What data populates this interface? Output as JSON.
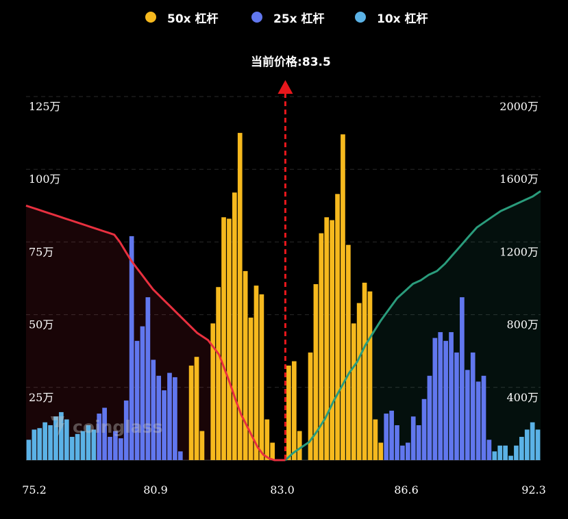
{
  "legend": [
    {
      "label": "50x 杠杆",
      "color": "#F6B91E"
    },
    {
      "label": "25x 杠杆",
      "color": "#6177EE"
    },
    {
      "label": "10x 杠杆",
      "color": "#5BB2E6"
    }
  ],
  "price_label": "当前价格:83.5",
  "watermark": "coinglass",
  "chart_data": {
    "type": "bar",
    "current_price": 83.5,
    "current_price_marker_color": "#E8171C",
    "x_tick_labels": [
      "75.2",
      "80.9",
      "83.0",
      "86.6",
      "92.3"
    ],
    "left_axis": {
      "tick_labels": [
        "25万",
        "50万",
        "75万",
        "100万",
        "125万"
      ],
      "ylim": [
        0,
        1250000
      ]
    },
    "right_axis": {
      "tick_labels": [
        "400万",
        "800万",
        "1200万",
        "1600万",
        "2000万"
      ],
      "ylim": [
        0,
        20000000
      ]
    },
    "grid": true,
    "legend_position": "top",
    "bar_values": [
      70000,
      105000,
      110000,
      130000,
      120000,
      150000,
      165000,
      140000,
      80000,
      90000,
      100000,
      120000,
      105000,
      160000,
      180000,
      80000,
      100000,
      75000,
      205000,
      770000,
      410000,
      460000,
      560000,
      345000,
      290000,
      240000,
      300000,
      285000,
      30000,
      0,
      325000,
      355000,
      100000,
      0,
      470000,
      595000,
      835000,
      830000,
      920000,
      1125000,
      650000,
      490000,
      600000,
      570000,
      140000,
      60000,
      0,
      0,
      325000,
      340000,
      100000,
      0,
      370000,
      605000,
      780000,
      835000,
      825000,
      915000,
      1120000,
      740000,
      470000,
      540000,
      610000,
      580000,
      140000,
      60000,
      160000,
      170000,
      120000,
      50000,
      60000,
      150000,
      120000,
      210000,
      290000,
      420000,
      440000,
      410000,
      440000,
      370000,
      560000,
      310000,
      370000,
      270000,
      290000,
      70000,
      30000,
      50000,
      50000,
      15000,
      50000,
      80000,
      105000,
      130000,
      105000
    ],
    "bar_series_index": [
      2,
      2,
      2,
      2,
      2,
      2,
      2,
      2,
      2,
      2,
      2,
      2,
      2,
      1,
      1,
      1,
      1,
      1,
      1,
      1,
      1,
      1,
      1,
      1,
      1,
      1,
      1,
      1,
      1,
      0,
      0,
      0,
      0,
      0,
      0,
      0,
      0,
      0,
      0,
      0,
      0,
      0,
      0,
      0,
      0,
      0,
      0,
      0,
      0,
      0,
      0,
      0,
      0,
      0,
      0,
      0,
      0,
      0,
      0,
      0,
      0,
      0,
      0,
      0,
      0,
      0,
      1,
      1,
      1,
      1,
      1,
      1,
      1,
      1,
      1,
      1,
      1,
      1,
      1,
      1,
      1,
      1,
      1,
      1,
      1,
      1,
      2,
      2,
      2,
      2,
      2,
      2,
      2,
      2,
      2
    ],
    "short_cumulative": {
      "color": "#E8303F",
      "values": [
        14000000,
        13900000,
        13800000,
        13700000,
        13600000,
        13500000,
        13400000,
        13300000,
        13200000,
        13100000,
        13000000,
        12900000,
        12800000,
        12700000,
        12600000,
        12500000,
        12400000,
        12000000,
        11500000,
        11000000,
        10600000,
        10200000,
        9800000,
        9400000,
        9100000,
        8800000,
        8500000,
        8200000,
        7900000,
        7600000,
        7300000,
        7000000,
        6800000,
        6600000,
        6200000,
        5800000,
        5000000,
        4200000,
        3300000,
        2500000,
        1900000,
        1300000,
        700000,
        300000,
        100000,
        0,
        0,
        0
      ]
    },
    "long_cumulative": {
      "color": "#2A9C7C",
      "values": [
        0,
        400000,
        700000,
        1000000,
        1600000,
        2300000,
        3200000,
        4000000,
        4800000,
        5400000,
        6300000,
        7000000,
        7700000,
        8300000,
        8900000,
        9300000,
        9700000,
        9900000,
        10200000,
        10400000,
        10800000,
        11300000,
        11800000,
        12300000,
        12800000,
        13100000,
        13400000,
        13700000,
        13900000,
        14100000,
        14300000,
        14500000,
        14800000
      ]
    }
  }
}
